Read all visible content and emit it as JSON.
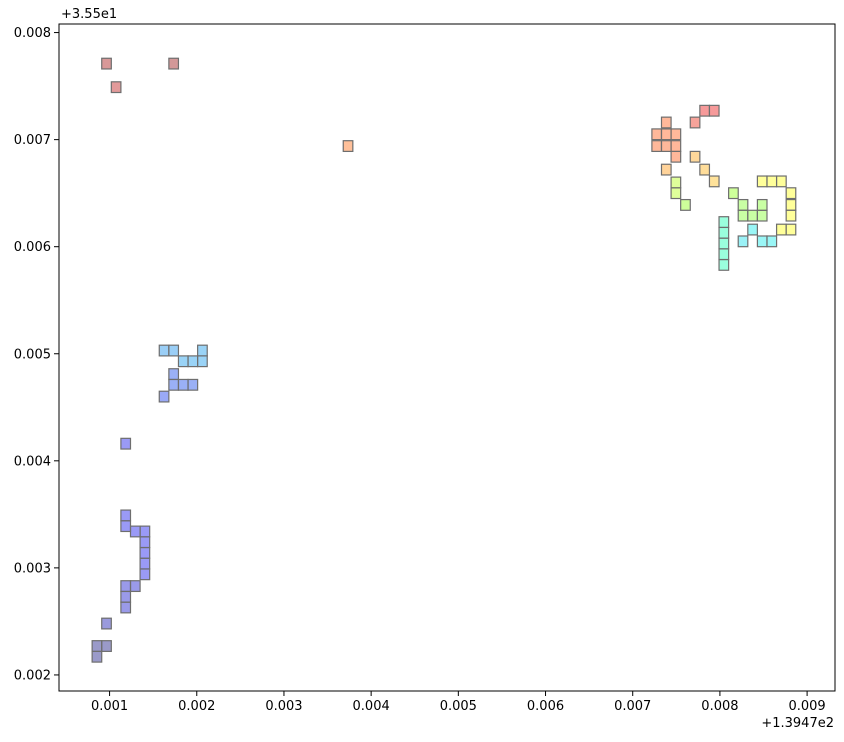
{
  "chart_data": {
    "type": "scatter",
    "title": "",
    "xlabel": "",
    "ylabel": "",
    "x_offset_label": "+1.3947e2",
    "y_offset_label": "+3.55e1",
    "xlim": [
      0.00042,
      0.00932
    ],
    "ylim": [
      0.00185,
      0.00808
    ],
    "x_ticks": [
      {
        "value": 0.001,
        "label": "0.001"
      },
      {
        "value": 0.002,
        "label": "0.002"
      },
      {
        "value": 0.003,
        "label": "0.003"
      },
      {
        "value": 0.004,
        "label": "0.004"
      },
      {
        "value": 0.005,
        "label": "0.005"
      },
      {
        "value": 0.006,
        "label": "0.006"
      },
      {
        "value": 0.007,
        "label": "0.007"
      },
      {
        "value": 0.008,
        "label": "0.008"
      },
      {
        "value": 0.009,
        "label": "0.009"
      }
    ],
    "y_ticks": [
      {
        "value": 0.002,
        "label": "0.002"
      },
      {
        "value": 0.003,
        "label": "0.003"
      },
      {
        "value": 0.004,
        "label": "0.004"
      },
      {
        "value": 0.005,
        "label": "0.005"
      },
      {
        "value": 0.006,
        "label": "0.006"
      },
      {
        "value": 0.007,
        "label": "0.007"
      },
      {
        "value": 0.008,
        "label": "0.008"
      }
    ],
    "grid": false,
    "legend": "none",
    "cell_width": 0.00011,
    "cell_height": 0.0001,
    "cells": [
      {
        "x": 0.0008,
        "y": 0.00212,
        "color": "#5c5ca8"
      },
      {
        "x": 0.0008,
        "y": 0.00222,
        "color": "#5c5ca8"
      },
      {
        "x": 0.00091,
        "y": 0.00222,
        "color": "#5c5ca8"
      },
      {
        "x": 0.00091,
        "y": 0.00243,
        "color": "#5c5cc8"
      },
      {
        "x": 0.00113,
        "y": 0.00258,
        "color": "#5c5cdc"
      },
      {
        "x": 0.00113,
        "y": 0.00268,
        "color": "#5c5cdc"
      },
      {
        "x": 0.00124,
        "y": 0.00278,
        "color": "#5c5cdc"
      },
      {
        "x": 0.00113,
        "y": 0.00278,
        "color": "#5c5cdc"
      },
      {
        "x": 0.00135,
        "y": 0.00289,
        "color": "#5c5cf0"
      },
      {
        "x": 0.00135,
        "y": 0.00299,
        "color": "#5c5cf0"
      },
      {
        "x": 0.00135,
        "y": 0.00309,
        "color": "#5c5cf0"
      },
      {
        "x": 0.00135,
        "y": 0.00319,
        "color": "#5c5cf0"
      },
      {
        "x": 0.00135,
        "y": 0.00329,
        "color": "#5c5cf0"
      },
      {
        "x": 0.00124,
        "y": 0.00329,
        "color": "#5c5cf0"
      },
      {
        "x": 0.00113,
        "y": 0.00334,
        "color": "#5c5cf0"
      },
      {
        "x": 0.00113,
        "y": 0.00344,
        "color": "#5c5cf0"
      },
      {
        "x": 0.00113,
        "y": 0.00411,
        "color": "#5c5cf0"
      },
      {
        "x": 0.00157,
        "y": 0.00455,
        "color": "#5c74f0"
      },
      {
        "x": 0.00168,
        "y": 0.00466,
        "color": "#5c80f0"
      },
      {
        "x": 0.00168,
        "y": 0.00476,
        "color": "#5c80f0"
      },
      {
        "x": 0.00179,
        "y": 0.00466,
        "color": "#5c80f0"
      },
      {
        "x": 0.0019,
        "y": 0.00466,
        "color": "#5c80f0"
      },
      {
        "x": 0.00157,
        "y": 0.00498,
        "color": "#5cb0f0"
      },
      {
        "x": 0.00168,
        "y": 0.00498,
        "color": "#5cb0f0"
      },
      {
        "x": 0.00179,
        "y": 0.00488,
        "color": "#5cb8f0"
      },
      {
        "x": 0.0019,
        "y": 0.00488,
        "color": "#5cb8f0"
      },
      {
        "x": 0.00201,
        "y": 0.00488,
        "color": "#5cb8f0"
      },
      {
        "x": 0.00201,
        "y": 0.00498,
        "color": "#5cb8f0"
      },
      {
        "x": 0.00091,
        "y": 0.00766,
        "color": "#c05858"
      },
      {
        "x": 0.00102,
        "y": 0.00744,
        "color": "#d05c5c"
      },
      {
        "x": 0.00168,
        "y": 0.00766,
        "color": "#b85858"
      },
      {
        "x": 0.00368,
        "y": 0.00689,
        "color": "#ff9a5c"
      },
      {
        "x": 0.00722,
        "y": 0.00689,
        "color": "#ff8c5c"
      },
      {
        "x": 0.00722,
        "y": 0.007,
        "color": "#ff8c5c"
      },
      {
        "x": 0.00733,
        "y": 0.00689,
        "color": "#ff8c5c"
      },
      {
        "x": 0.00733,
        "y": 0.007,
        "color": "#ff8c5c"
      },
      {
        "x": 0.00744,
        "y": 0.00679,
        "color": "#ff8c5c"
      },
      {
        "x": 0.00744,
        "y": 0.00689,
        "color": "#ff8c5c"
      },
      {
        "x": 0.00744,
        "y": 0.007,
        "color": "#ff8c5c"
      },
      {
        "x": 0.00733,
        "y": 0.00711,
        "color": "#ff8c5c"
      },
      {
        "x": 0.00766,
        "y": 0.00711,
        "color": "#f06a5c"
      },
      {
        "x": 0.00777,
        "y": 0.00722,
        "color": "#f05c5c"
      },
      {
        "x": 0.00788,
        "y": 0.00722,
        "color": "#f05c5c"
      },
      {
        "x": 0.00733,
        "y": 0.00667,
        "color": "#ffb85c"
      },
      {
        "x": 0.00744,
        "y": 0.00645,
        "color": "#ccff5c"
      },
      {
        "x": 0.00744,
        "y": 0.00655,
        "color": "#ccff5c"
      },
      {
        "x": 0.00755,
        "y": 0.00634,
        "color": "#b0ff5c"
      },
      {
        "x": 0.00766,
        "y": 0.00679,
        "color": "#ffc05c"
      },
      {
        "x": 0.00777,
        "y": 0.00667,
        "color": "#ffc85c"
      },
      {
        "x": 0.00788,
        "y": 0.00656,
        "color": "#ffd05c"
      },
      {
        "x": 0.00799,
        "y": 0.00578,
        "color": "#5cffc8"
      },
      {
        "x": 0.00799,
        "y": 0.00588,
        "color": "#5cffc8"
      },
      {
        "x": 0.00799,
        "y": 0.00598,
        "color": "#5cffc8"
      },
      {
        "x": 0.00799,
        "y": 0.00608,
        "color": "#5cffc8"
      },
      {
        "x": 0.00799,
        "y": 0.00618,
        "color": "#5cffc8"
      },
      {
        "x": 0.0081,
        "y": 0.00645,
        "color": "#b0ff5c"
      },
      {
        "x": 0.00821,
        "y": 0.00634,
        "color": "#a8ff6c"
      },
      {
        "x": 0.00821,
        "y": 0.00624,
        "color": "#a8ff6c"
      },
      {
        "x": 0.00832,
        "y": 0.00624,
        "color": "#a8ff6c"
      },
      {
        "x": 0.00843,
        "y": 0.00624,
        "color": "#a8ff6c"
      },
      {
        "x": 0.00843,
        "y": 0.00634,
        "color": "#a8ff6c"
      },
      {
        "x": 0.00821,
        "y": 0.006,
        "color": "#5ce8f0"
      },
      {
        "x": 0.00832,
        "y": 0.00611,
        "color": "#5cf0f0"
      },
      {
        "x": 0.00843,
        "y": 0.006,
        "color": "#5cf0f0"
      },
      {
        "x": 0.00854,
        "y": 0.006,
        "color": "#5cf0f0"
      },
      {
        "x": 0.00843,
        "y": 0.00656,
        "color": "#ffff5c"
      },
      {
        "x": 0.00854,
        "y": 0.00656,
        "color": "#ffff5c"
      },
      {
        "x": 0.00865,
        "y": 0.00656,
        "color": "#ffff5c"
      },
      {
        "x": 0.00876,
        "y": 0.00645,
        "color": "#ffff5c"
      },
      {
        "x": 0.00876,
        "y": 0.00634,
        "color": "#ffff5c"
      },
      {
        "x": 0.00876,
        "y": 0.00624,
        "color": "#ffff5c"
      },
      {
        "x": 0.00865,
        "y": 0.00611,
        "color": "#ffff5c"
      },
      {
        "x": 0.00876,
        "y": 0.00611,
        "color": "#ffff5c"
      }
    ]
  }
}
